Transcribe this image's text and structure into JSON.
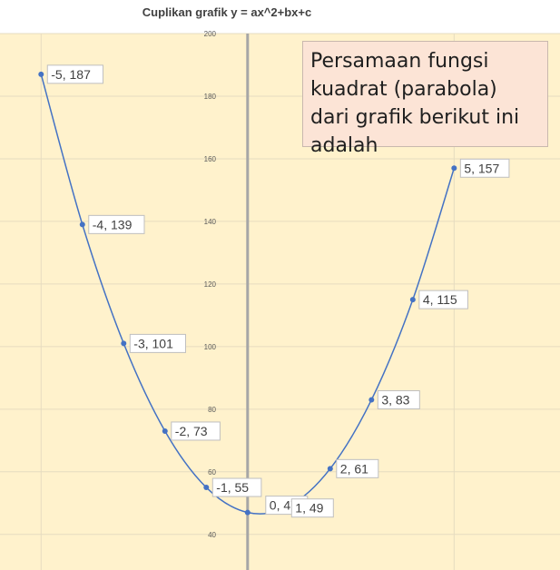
{
  "chart_data": {
    "type": "scatter",
    "title": "Cuplikan grafik y = ax^2+bx+c",
    "xlabel": "",
    "ylabel": "",
    "xlim": [
      -5.05,
      9.3
    ],
    "ylim": [
      35,
      200
    ],
    "y_ticks": [
      40,
      60,
      80,
      100,
      120,
      140,
      160,
      180,
      200
    ],
    "grid": true,
    "smooth_line": true,
    "colors": {
      "plot_bg": "#fff2cc",
      "grid": "#e6dcc0",
      "y_axis": "#a6a6a6",
      "series": "#4472c4",
      "label_border": "#bfbfbf"
    },
    "points": [
      {
        "x": -5,
        "y": 187,
        "label": "-5, 187"
      },
      {
        "x": -4,
        "y": 139,
        "label": "-4, 139"
      },
      {
        "x": -3,
        "y": 101,
        "label": "-3, 101"
      },
      {
        "x": -2,
        "y": 73,
        "label": "-2, 73"
      },
      {
        "x": -1,
        "y": 55,
        "label": "-1, 55"
      },
      {
        "x": 0,
        "y": 47,
        "label": "0, 47"
      },
      {
        "x": 1,
        "y": 49,
        "label": "1, 49"
      },
      {
        "x": 2,
        "y": 61,
        "label": "2, 61"
      },
      {
        "x": 3,
        "y": 83,
        "label": "3, 83"
      },
      {
        "x": 4,
        "y": 115,
        "label": "4, 115"
      },
      {
        "x": 5,
        "y": 157,
        "label": "5, 157"
      }
    ]
  },
  "note": {
    "text": "Persamaan fungsi kuadrat (parabola) dari grafik berikut ini adalah"
  }
}
